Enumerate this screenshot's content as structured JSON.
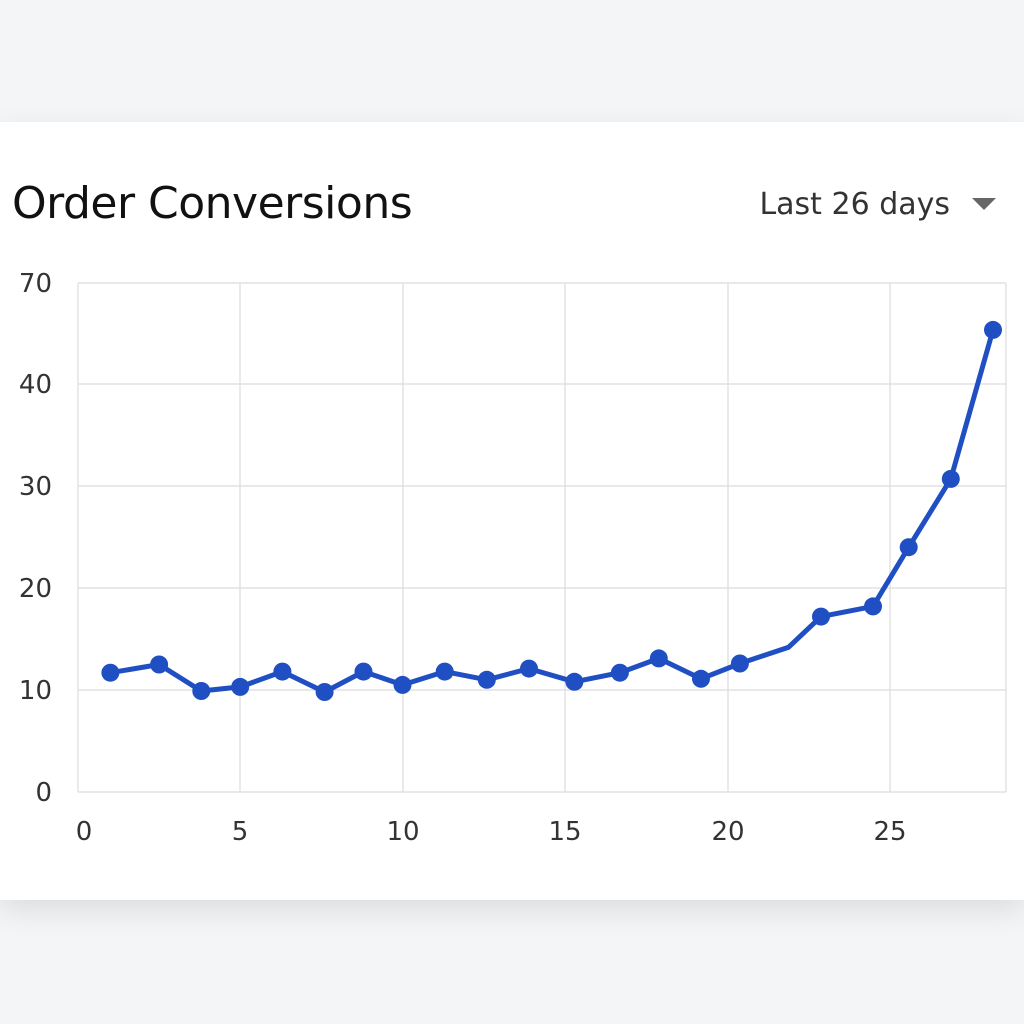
{
  "header": {
    "title": "Order Conversions",
    "range_label": "Last 26 days",
    "range_caret_icon": "chevron-down-icon"
  },
  "colors": {
    "line": "#1f4fc2",
    "grid": "#dcdcdc",
    "text": "#333333"
  },
  "chart_data": {
    "type": "line",
    "title": "Order Conversions",
    "xlabel": "",
    "ylabel": "",
    "grid": true,
    "x_ticks": [
      0,
      5,
      10,
      15,
      20,
      25
    ],
    "y_ticks": [
      0,
      10,
      20,
      30,
      40,
      70
    ],
    "series": [
      {
        "points": [
          {
            "x": 1.0,
            "y": 11.7,
            "marker": true
          },
          {
            "x": 2.5,
            "y": 12.5,
            "marker": true
          },
          {
            "x": 3.8,
            "y": 9.9,
            "marker": true
          },
          {
            "x": 5.0,
            "y": 10.3,
            "marker": true
          },
          {
            "x": 6.3,
            "y": 11.8,
            "marker": true
          },
          {
            "x": 7.6,
            "y": 9.8,
            "marker": true
          },
          {
            "x": 8.8,
            "y": 11.8,
            "marker": true
          },
          {
            "x": 10.0,
            "y": 10.5,
            "marker": true
          },
          {
            "x": 11.3,
            "y": 11.8,
            "marker": true
          },
          {
            "x": 12.6,
            "y": 11.0,
            "marker": true
          },
          {
            "x": 13.9,
            "y": 12.1,
            "marker": true
          },
          {
            "x": 15.3,
            "y": 10.8,
            "marker": true
          },
          {
            "x": 16.7,
            "y": 11.7,
            "marker": true
          },
          {
            "x": 17.9,
            "y": 13.1,
            "marker": true
          },
          {
            "x": 19.2,
            "y": 11.1,
            "marker": true
          },
          {
            "x": 20.4,
            "y": 12.6,
            "marker": true
          },
          {
            "x": 21.9,
            "y": 14.2,
            "marker": false
          },
          {
            "x": 22.9,
            "y": 17.2,
            "marker": true
          },
          {
            "x": 24.5,
            "y": 18.2,
            "marker": true
          },
          {
            "x": 25.6,
            "y": 24.0,
            "marker": true
          },
          {
            "x": 26.9,
            "y": 30.7,
            "marker": true
          },
          {
            "x": 28.2,
            "y": 45.3,
            "marker": true
          }
        ]
      }
    ]
  }
}
